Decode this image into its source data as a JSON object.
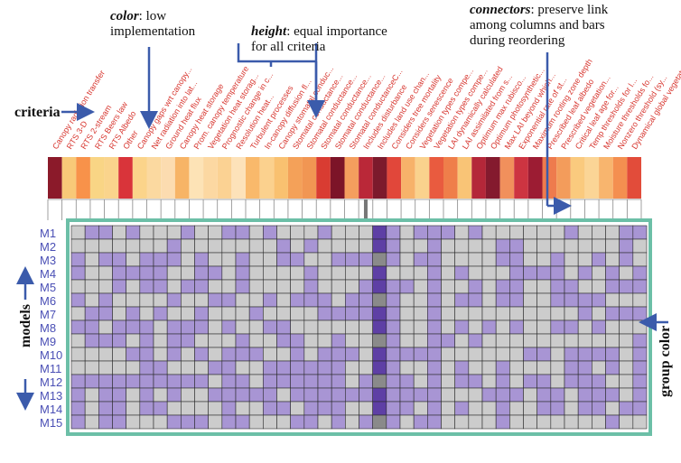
{
  "annotations": {
    "color_title": "color",
    "color_text": ": low",
    "color_text2": "implementation",
    "height_title": "height",
    "height_text": ": equal importance",
    "height_text2": "for all criteria",
    "connectors_title": "connectors",
    "connectors_text": ": preserve link",
    "connectors_text2": "among columns and bars",
    "connectors_text3": "during reordering",
    "criteria_label": "criteria",
    "models_label": "models",
    "group_color_label": "group color"
  },
  "criteria": [
    "Canopy radiation transfer",
    "RTS 3-D",
    "RTS 2-stream",
    "RTS Beers law",
    "RTS Albedo",
    "Other",
    "Canopy gaps wrt canopy...",
    "Net radiation into lat...",
    "Ground heat flux",
    "Canopy heat storage",
    "Prom. canopy temperature",
    "Vegetation heat storag...",
    "Prognostic change in c...",
    "Resolution heat...",
    "Turbulent processes",
    "In-canopy diffusion fl...",
    "Canopy stomatal conduc...",
    "Stomatal conductance...",
    "Stomatal conductance...",
    "Stomatal conductance...",
    "Stomatal conductance...",
    "Stomatal conductanceC...",
    "Includes disturbance",
    "Includes land use chan...",
    "Considers tree mortality",
    "Considers senescence",
    "Vegetation types compe...",
    "Vegetation types compe...",
    "LAI dynamically calculated",
    "LAI assimilated from s...",
    "Optimum max rubisco...",
    "Optimum photosynthetic...",
    "Max LAI beyond which...",
    "Exponential rate of st...",
    "Maximum rooting zone depth",
    "Prescribed leaf albedo",
    "Prescribed vegetation...",
    "Critical leaf age for...",
    "Temp thresholds for l...",
    "Moisture thresholds fo...",
    "Nonzero threshold (sy...",
    "Dynamical global vegetat..."
  ],
  "criteria_colors": [
    "#8b1a2a",
    "#f8c978",
    "#f8924a",
    "#f9d585",
    "#fad48c",
    "#d9343a",
    "#fbd48a",
    "#fbd9a0",
    "#fcdcb0",
    "#f7b466",
    "#fde3b6",
    "#fcd8a2",
    "#fbd293",
    "#fde2b9",
    "#f9b96b",
    "#fbd18e",
    "#f9c170",
    "#f4a159",
    "#f19653",
    "#d93c32",
    "#7c1428",
    "#f49e5e",
    "#ba2838",
    "#7c1a2c",
    "#e1473a",
    "#f7b26a",
    "#fad28d",
    "#e95b3f",
    "#ef7e4a",
    "#f9c476",
    "#b42739",
    "#841a2e",
    "#f1905c",
    "#cd3441",
    "#9c1c33",
    "#ee7b4d",
    "#f39c5b",
    "#faca7e",
    "#fbd596",
    "#f8b56e",
    "#f48f50",
    "#e24c3a"
  ],
  "models": [
    "M1",
    "M2",
    "M3",
    "M4",
    "M5",
    "M6",
    "M7",
    "M8",
    "M9",
    "M10",
    "M11",
    "M12",
    "M13",
    "M14",
    "M15"
  ],
  "colors": {
    "cell_on": "#a895d4",
    "cell_off": "#cccccc",
    "highlight_column": "#5e3fa5",
    "group_border": "#6cbfa7",
    "arrow": "#3b5bab",
    "model_label": "#4a4fb5",
    "criteria_text": "#d7352e"
  },
  "matrix": [
    "011010001001101000100001011101000000100011",
    "000000010000000101000001001000011000000010",
    "101101110100100110011101011000011001001010",
    "100111100110100001000000001010001111010101",
    "000101101100100001000111101001011001100111",
    "101000010011001011101111001011011001111000",
    "011010100100010000111101001000000000010111",
    "110111011101001100000001001010101001101000",
    "011101011000100110010001001101000000000001",
    "000011010101110010111001111000000110111101",
    "000001100011001111110001001010010000110101",
    "111111111101101111110101101011010110111001",
    "101101010011111011111101111000111011011101",
    "101101100001001101110001101010010011011011",
    "101100011101100011010101011000010000000100"
  ],
  "highlight_col": 22
}
